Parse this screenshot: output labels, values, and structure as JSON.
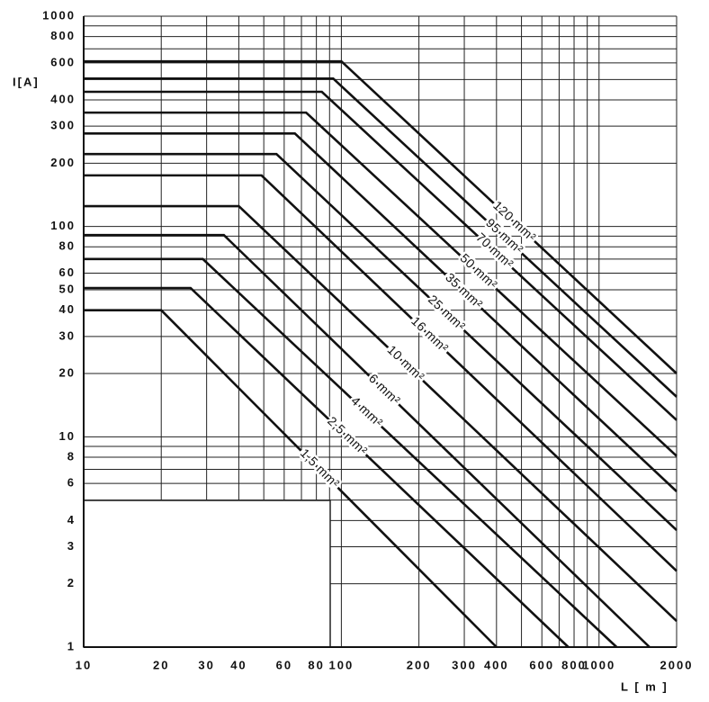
{
  "chart_data": {
    "type": "line",
    "y_label": "I[A]",
    "x_label": "L [ m ]",
    "log_x": true,
    "log_y": true,
    "grid": true,
    "xlim": [
      10,
      2000
    ],
    "ylim": [
      1,
      1000
    ],
    "xticks": [
      10,
      20,
      30,
      40,
      60,
      80,
      100,
      200,
      300,
      400,
      600,
      800,
      1000,
      2000
    ],
    "x_minor_ticks": [
      50,
      70,
      90,
      500,
      700,
      900
    ],
    "yticks": [
      1,
      2,
      3,
      4,
      6,
      8,
      10,
      20,
      30,
      40,
      50,
      60,
      80,
      100,
      200,
      300,
      400,
      600,
      800,
      1000
    ],
    "y_minor_ticks": [
      5,
      7,
      9,
      70,
      90,
      500,
      700,
      900
    ],
    "series": [
      {
        "name": "120 mm²",
        "color": "#111111",
        "x": [
          10,
          100,
          2000
        ],
        "values": [
          610,
          610,
          20
        ]
      },
      {
        "name": "95 mm²",
        "color": "#111111",
        "x": [
          10,
          93,
          2000
        ],
        "values": [
          505,
          505,
          15.5
        ]
      },
      {
        "name": "70 mm²",
        "color": "#111111",
        "x": [
          10,
          84,
          2000
        ],
        "values": [
          437,
          437,
          12
        ]
      },
      {
        "name": "50 mm²",
        "color": "#111111",
        "x": [
          10,
          73,
          2000
        ],
        "values": [
          348,
          348,
          8.1
        ]
      },
      {
        "name": "35 mm²",
        "color": "#111111",
        "x": [
          10,
          66,
          2000
        ],
        "values": [
          277,
          277,
          5.5
        ]
      },
      {
        "name": "25 mm²",
        "color": "#111111",
        "x": [
          10,
          56,
          2000
        ],
        "values": [
          221,
          221,
          3.6
        ]
      },
      {
        "name": "16 mm²",
        "color": "#111111",
        "x": [
          10,
          49,
          2000
        ],
        "values": [
          175,
          175,
          2.3
        ]
      },
      {
        "name": "10 mm²",
        "color": "#111111",
        "x": [
          10,
          40,
          2000
        ],
        "values": [
          125,
          125,
          1.33
        ]
      },
      {
        "name": "6 mm²",
        "color": "#111111",
        "x": [
          10,
          35,
          1570
        ],
        "values": [
          91,
          91,
          1
        ]
      },
      {
        "name": "4 mm²",
        "color": "#111111",
        "x": [
          10,
          29,
          1170
        ],
        "values": [
          70,
          70,
          1
        ]
      },
      {
        "name": "2,5 mm²",
        "color": "#111111",
        "x": [
          10,
          26,
          760
        ],
        "values": [
          51,
          51,
          1
        ]
      },
      {
        "name": "1,5 mm²",
        "color": "#111111",
        "x": [
          10,
          20,
          400
        ],
        "values": [
          40,
          40,
          1
        ]
      }
    ]
  }
}
